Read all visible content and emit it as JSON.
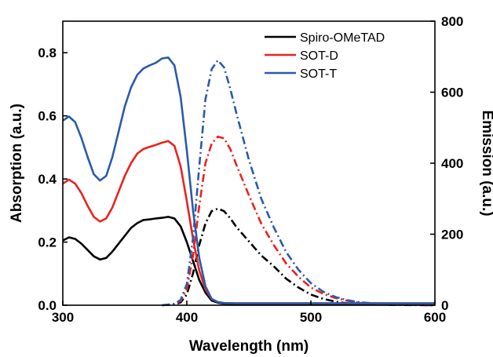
{
  "chart_data": {
    "type": "line",
    "xlabel": "Wavelength (nm)",
    "ylabel": "Absorption (a.u.)",
    "y2label": "Emission (a.u.)",
    "xlim": [
      300,
      600
    ],
    "ylim": [
      0,
      0.9
    ],
    "y2lim": [
      0,
      800
    ],
    "xticks": [
      "300",
      "400",
      "500",
      "600"
    ],
    "yticks": [
      "0.0",
      "0.2",
      "0.4",
      "0.6",
      "0.8"
    ],
    "y2ticks": [
      "0",
      "200",
      "400",
      "600",
      "800"
    ],
    "grid": false,
    "legend_position": "top-right",
    "series": [
      {
        "name": "Spiro-OMeTAD",
        "color": "#000000",
        "absorption": {
          "x": [
            300,
            305,
            310,
            315,
            320,
            325,
            330,
            335,
            340,
            345,
            350,
            355,
            360,
            365,
            370,
            375,
            380,
            385,
            390,
            395,
            400,
            405,
            410,
            415,
            420,
            425,
            430,
            440,
            460,
            500,
            550,
            600
          ],
          "y": [
            0.205,
            0.215,
            0.21,
            0.195,
            0.175,
            0.155,
            0.145,
            0.15,
            0.17,
            0.195,
            0.22,
            0.245,
            0.26,
            0.27,
            0.272,
            0.275,
            0.277,
            0.28,
            0.275,
            0.25,
            0.2,
            0.14,
            0.08,
            0.04,
            0.015,
            0.008,
            0.005,
            0.004,
            0.004,
            0.004,
            0.004,
            0.004
          ]
        },
        "emission": {
          "x": [
            380,
            390,
            395,
            400,
            405,
            410,
            415,
            420,
            425,
            430,
            435,
            440,
            450,
            460,
            470,
            480,
            490,
            500,
            510,
            520,
            530,
            540,
            560,
            600
          ],
          "y": [
            0,
            2,
            8,
            30,
            90,
            170,
            230,
            265,
            272,
            265,
            245,
            220,
            180,
            140,
            110,
            75,
            50,
            30,
            18,
            10,
            5,
            3,
            1,
            0
          ]
        }
      },
      {
        "name": "SOT-D",
        "color": "#e8231f",
        "absorption": {
          "x": [
            300,
            305,
            310,
            315,
            320,
            325,
            330,
            335,
            340,
            345,
            350,
            355,
            360,
            365,
            370,
            375,
            380,
            385,
            390,
            395,
            400,
            405,
            410,
            415,
            420,
            425,
            430,
            440,
            460,
            500,
            550,
            600
          ],
          "y": [
            0.385,
            0.398,
            0.385,
            0.355,
            0.315,
            0.28,
            0.265,
            0.275,
            0.31,
            0.36,
            0.41,
            0.45,
            0.48,
            0.495,
            0.502,
            0.508,
            0.515,
            0.52,
            0.505,
            0.44,
            0.33,
            0.21,
            0.11,
            0.05,
            0.02,
            0.01,
            0.007,
            0.006,
            0.006,
            0.006,
            0.006,
            0.006
          ]
        },
        "emission": {
          "x": [
            380,
            390,
            395,
            400,
            405,
            410,
            415,
            420,
            425,
            430,
            435,
            440,
            450,
            460,
            470,
            480,
            490,
            500,
            510,
            520,
            530,
            540,
            560,
            600
          ],
          "y": [
            0,
            3,
            12,
            45,
            140,
            280,
            400,
            455,
            475,
            470,
            440,
            395,
            310,
            230,
            170,
            118,
            80,
            50,
            32,
            20,
            12,
            7,
            2,
            0
          ]
        }
      },
      {
        "name": "SOT-T",
        "color": "#2b5ba8",
        "absorption": {
          "x": [
            300,
            305,
            310,
            315,
            320,
            325,
            330,
            335,
            340,
            345,
            350,
            355,
            360,
            365,
            370,
            375,
            380,
            385,
            390,
            395,
            400,
            405,
            410,
            415,
            420,
            425,
            430,
            440,
            460,
            500,
            550,
            600
          ],
          "y": [
            0.585,
            0.598,
            0.58,
            0.53,
            0.47,
            0.415,
            0.395,
            0.41,
            0.47,
            0.55,
            0.63,
            0.69,
            0.73,
            0.75,
            0.76,
            0.768,
            0.782,
            0.785,
            0.76,
            0.66,
            0.49,
            0.3,
            0.15,
            0.06,
            0.02,
            0.01,
            0.007,
            0.006,
            0.006,
            0.006,
            0.006,
            0.006
          ]
        },
        "emission": {
          "x": [
            380,
            390,
            395,
            400,
            405,
            410,
            415,
            420,
            425,
            430,
            435,
            440,
            450,
            460,
            470,
            480,
            490,
            500,
            510,
            520,
            530,
            540,
            560,
            600
          ],
          "y": [
            0,
            4,
            15,
            60,
            190,
            390,
            580,
            665,
            690,
            670,
            610,
            540,
            410,
            300,
            220,
            150,
            100,
            62,
            38,
            23,
            14,
            8,
            3,
            0
          ]
        }
      }
    ]
  }
}
